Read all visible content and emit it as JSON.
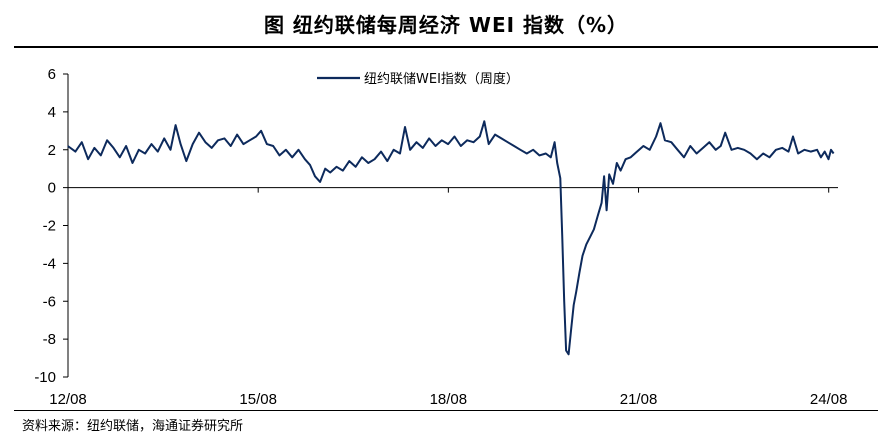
{
  "title": "图  纽约联储每周经济 WEI 指数（%）",
  "source": "资料来源：纽约联储，海通证券研究所",
  "colors": {
    "series": "#0d2a5c",
    "axis": "#000000"
  },
  "chart_data": {
    "type": "line",
    "title": "图  纽约联储每周经济 WEI 指数（%）",
    "xlabel": "",
    "ylabel": "",
    "ylim": [
      -10,
      6
    ],
    "yticks": [
      "6",
      "4",
      "2",
      "0",
      "-2",
      "-4",
      "-6",
      "-8",
      "-10"
    ],
    "xticks": [
      "12/08",
      "15/08",
      "18/08",
      "21/08",
      "24/08"
    ],
    "xlim": [
      2012.583,
      2024.667
    ],
    "grid": false,
    "legend": "top-center",
    "series": [
      {
        "name": "纽约联储WEI指数（周度）",
        "frequency": "weekly",
        "points": [
          [
            2012.58,
            2.2
          ],
          [
            2012.7,
            1.9
          ],
          [
            2012.8,
            2.4
          ],
          [
            2012.9,
            1.5
          ],
          [
            2013.0,
            2.1
          ],
          [
            2013.1,
            1.7
          ],
          [
            2013.2,
            2.5
          ],
          [
            2013.3,
            2.1
          ],
          [
            2013.4,
            1.6
          ],
          [
            2013.5,
            2.2
          ],
          [
            2013.6,
            1.3
          ],
          [
            2013.7,
            2.0
          ],
          [
            2013.8,
            1.8
          ],
          [
            2013.9,
            2.3
          ],
          [
            2014.0,
            1.9
          ],
          [
            2014.1,
            2.6
          ],
          [
            2014.2,
            2.0
          ],
          [
            2014.28,
            3.3
          ],
          [
            2014.36,
            2.3
          ],
          [
            2014.45,
            1.4
          ],
          [
            2014.55,
            2.3
          ],
          [
            2014.65,
            2.9
          ],
          [
            2014.75,
            2.4
          ],
          [
            2014.85,
            2.1
          ],
          [
            2014.95,
            2.5
          ],
          [
            2015.05,
            2.6
          ],
          [
            2015.15,
            2.2
          ],
          [
            2015.25,
            2.8
          ],
          [
            2015.35,
            2.3
          ],
          [
            2015.45,
            2.5
          ],
          [
            2015.55,
            2.7
          ],
          [
            2015.63,
            3.0
          ],
          [
            2015.72,
            2.3
          ],
          [
            2015.82,
            2.2
          ],
          [
            2015.92,
            1.7
          ],
          [
            2016.02,
            2.0
          ],
          [
            2016.12,
            1.6
          ],
          [
            2016.22,
            2.0
          ],
          [
            2016.32,
            1.5
          ],
          [
            2016.4,
            1.2
          ],
          [
            2016.48,
            0.6
          ],
          [
            2016.56,
            0.3
          ],
          [
            2016.64,
            1.0
          ],
          [
            2016.72,
            0.8
          ],
          [
            2016.82,
            1.1
          ],
          [
            2016.92,
            0.9
          ],
          [
            2017.02,
            1.4
          ],
          [
            2017.12,
            1.1
          ],
          [
            2017.22,
            1.6
          ],
          [
            2017.32,
            1.3
          ],
          [
            2017.42,
            1.5
          ],
          [
            2017.52,
            1.9
          ],
          [
            2017.62,
            1.4
          ],
          [
            2017.72,
            2.0
          ],
          [
            2017.82,
            1.8
          ],
          [
            2017.9,
            3.2
          ],
          [
            2017.98,
            2.0
          ],
          [
            2018.08,
            2.4
          ],
          [
            2018.18,
            2.1
          ],
          [
            2018.28,
            2.6
          ],
          [
            2018.38,
            2.2
          ],
          [
            2018.48,
            2.5
          ],
          [
            2018.58,
            2.3
          ],
          [
            2018.68,
            2.7
          ],
          [
            2018.78,
            2.2
          ],
          [
            2018.88,
            2.5
          ],
          [
            2018.98,
            2.4
          ],
          [
            2019.08,
            2.7
          ],
          [
            2019.15,
            3.5
          ],
          [
            2019.22,
            2.3
          ],
          [
            2019.32,
            2.8
          ],
          [
            2019.42,
            2.6
          ],
          [
            2019.52,
            2.4
          ],
          [
            2019.62,
            2.2
          ],
          [
            2019.72,
            2.0
          ],
          [
            2019.82,
            1.8
          ],
          [
            2019.92,
            2.0
          ],
          [
            2020.02,
            1.7
          ],
          [
            2020.12,
            1.8
          ],
          [
            2020.2,
            1.6
          ],
          [
            2020.26,
            2.4
          ],
          [
            2020.3,
            1.3
          ],
          [
            2020.35,
            0.5
          ],
          [
            2020.38,
            -2.5
          ],
          [
            2020.41,
            -6.0
          ],
          [
            2020.44,
            -8.6
          ],
          [
            2020.48,
            -8.8
          ],
          [
            2020.52,
            -7.5
          ],
          [
            2020.56,
            -6.2
          ],
          [
            2020.6,
            -5.5
          ],
          [
            2020.65,
            -4.5
          ],
          [
            2020.7,
            -3.6
          ],
          [
            2020.76,
            -3.0
          ],
          [
            2020.82,
            -2.6
          ],
          [
            2020.88,
            -2.2
          ],
          [
            2020.94,
            -1.5
          ],
          [
            2021.0,
            -0.8
          ],
          [
            2021.04,
            0.6
          ],
          [
            2021.08,
            -1.2
          ],
          [
            2021.12,
            0.7
          ],
          [
            2021.18,
            0.2
          ],
          [
            2021.24,
            1.3
          ],
          [
            2021.3,
            0.9
          ],
          [
            2021.38,
            1.5
          ],
          [
            2021.46,
            1.6
          ],
          [
            2021.56,
            1.9
          ],
          [
            2021.66,
            2.2
          ],
          [
            2021.76,
            2.0
          ],
          [
            2021.86,
            2.7
          ],
          [
            2021.93,
            3.4
          ],
          [
            2022.0,
            2.5
          ],
          [
            2022.1,
            2.4
          ],
          [
            2022.2,
            2.0
          ],
          [
            2022.3,
            1.6
          ],
          [
            2022.4,
            2.2
          ],
          [
            2022.5,
            1.8
          ],
          [
            2022.6,
            2.1
          ],
          [
            2022.7,
            2.4
          ],
          [
            2022.8,
            2.0
          ],
          [
            2022.88,
            2.2
          ],
          [
            2022.95,
            2.9
          ],
          [
            2023.05,
            2.0
          ],
          [
            2023.15,
            2.1
          ],
          [
            2023.25,
            2.0
          ],
          [
            2023.35,
            1.8
          ],
          [
            2023.45,
            1.5
          ],
          [
            2023.55,
            1.8
          ],
          [
            2023.65,
            1.6
          ],
          [
            2023.75,
            2.0
          ],
          [
            2023.85,
            2.1
          ],
          [
            2023.95,
            1.9
          ],
          [
            2024.02,
            2.7
          ],
          [
            2024.1,
            1.8
          ],
          [
            2024.2,
            2.0
          ],
          [
            2024.3,
            1.9
          ],
          [
            2024.4,
            2.0
          ],
          [
            2024.46,
            1.6
          ],
          [
            2024.52,
            1.9
          ],
          [
            2024.58,
            1.5
          ],
          [
            2024.62,
            2.0
          ],
          [
            2024.66,
            1.8
          ]
        ]
      }
    ]
  }
}
